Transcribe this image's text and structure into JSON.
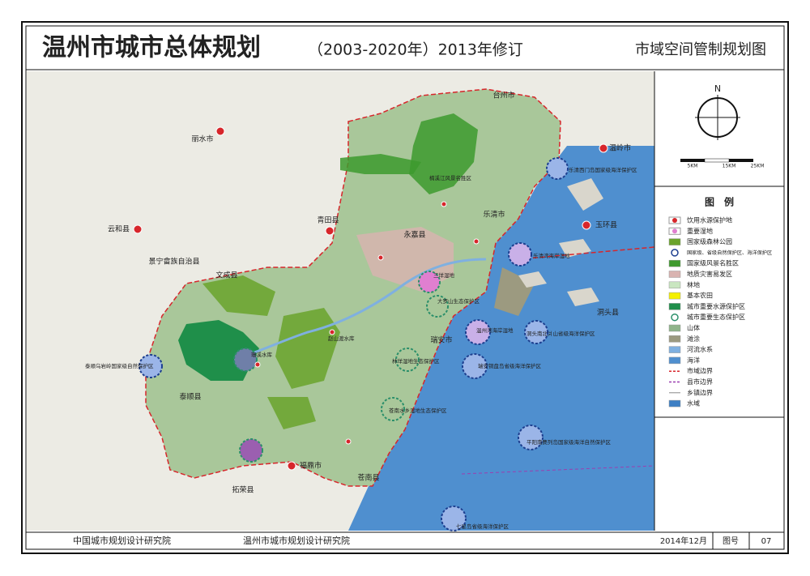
{
  "header": {
    "title": "温州市城市总体规划",
    "subtitle": "（2003-2020年）2013年修订",
    "map_name": "市域空间管制规划图"
  },
  "compass": {
    "north": "N",
    "scale": [
      "5KM",
      "15KM",
      "25KM"
    ]
  },
  "legend": {
    "title": "图　例",
    "items": [
      {
        "label": "饮用水源保护地",
        "symbol": "dot",
        "color": "#d7262b"
      },
      {
        "label": "重要湿地",
        "symbol": "dot",
        "color": "#e07fd0"
      },
      {
        "label": "国家级森林公园",
        "symbol": "rect",
        "color": "#6aa32c"
      },
      {
        "label": "国家级、省级自然保护区、海洋保护区",
        "symbol": "ring",
        "color": "#1d3f8f"
      },
      {
        "label": "国家级风景名胜区",
        "symbol": "rect",
        "color": "#3f9a2e"
      },
      {
        "label": "地质灾害易发区",
        "symbol": "rect",
        "color": "#d9b3b0"
      },
      {
        "label": "林地",
        "symbol": "rect",
        "color": "#c9e6c0"
      },
      {
        "label": "基本农田",
        "symbol": "rect",
        "color": "#f4f000"
      },
      {
        "label": "城市重要水源保护区",
        "symbol": "rect",
        "color": "#1f8f4a"
      },
      {
        "label": "城市重要生态保护区",
        "symbol": "ring",
        "color": "#2b8f6a"
      },
      {
        "label": "山体",
        "symbol": "rect",
        "color": "#8fb48a"
      },
      {
        "label": "滩涂",
        "symbol": "rect",
        "color": "#9c9a80"
      },
      {
        "label": "河流水系",
        "symbol": "rect",
        "color": "#7fb0e0"
      },
      {
        "label": "海洋",
        "symbol": "rect",
        "color": "#4f8fcf"
      },
      {
        "label": "市域边界",
        "symbol": "dashed-line",
        "color": "#d7262b"
      },
      {
        "label": "县市边界",
        "symbol": "dashed-line",
        "color": "#9b3fb0"
      },
      {
        "label": "乡镇边界",
        "symbol": "line",
        "color": "#888888"
      },
      {
        "label": "水域",
        "symbol": "rect",
        "color": "#3d7fc4"
      }
    ]
  },
  "map_labels": [
    "丽水市",
    "云和县",
    "景宁畲族自治县",
    "青田县",
    "台州市",
    "温岭市",
    "玉环县",
    "洞头县",
    "瑞安市",
    "泰顺县",
    "福鼎市",
    "拓荣县",
    "永嘉县",
    "乐清市",
    "文成县",
    "苍南县",
    "乐清湾海岸湿地",
    "乐清西门岛国家级海洋保护区",
    "三垟湿地",
    "大罗山生态保护区",
    "温州湾海岸湿地",
    "洞头南北爿山省级海洋保护区",
    "瑞安铜盘岛省级海洋保护区",
    "林垟湿地生态保护区",
    "苍南水乡湿地生态保护区",
    "平阳南麂列岛国家级海洋自然保护区",
    "七星岛省级海洋保护区",
    "泰顺乌岩岭国家级自然保护区",
    "珊溪水库",
    "赵山渡水库",
    "楠溪江风景名胜区"
  ],
  "footer": {
    "org1": "中国城市规划设计研究院",
    "org2": "温州市城市规划设计研究院",
    "date": "2014年12月",
    "drawing_no_label": "图号",
    "drawing_no": "07"
  }
}
